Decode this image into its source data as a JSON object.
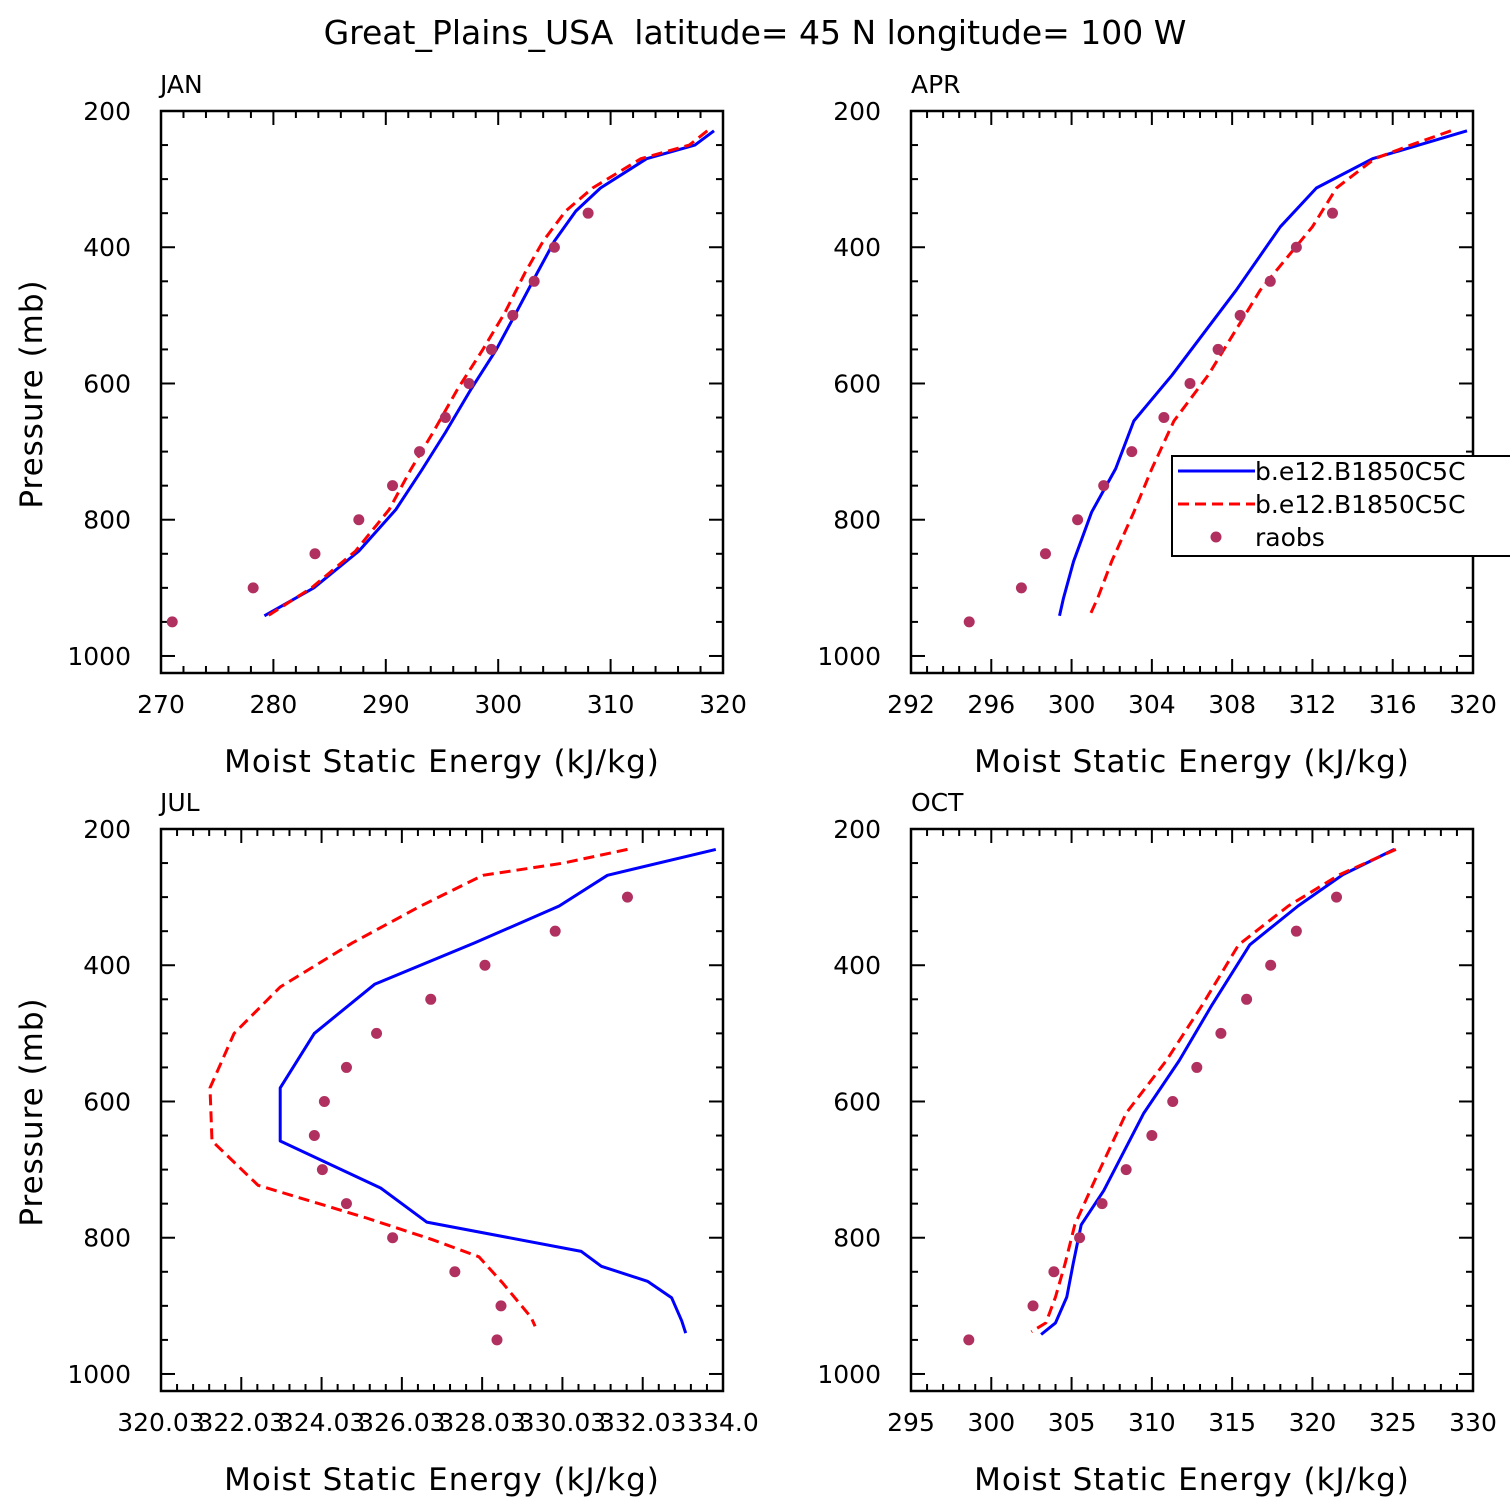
{
  "figure": {
    "title": "Great_Plains_USA  latitude= 45 N longitude= 100 W"
  },
  "colors": {
    "model_a": "#0000ff",
    "model_b": "#ff0000",
    "raobs": "#b03060"
  },
  "legend": {
    "entries": [
      {
        "label": "b.e12.B1850C5C",
        "style": "solid",
        "color": "#0000ff"
      },
      {
        "label": "b.e12.B1850C5C",
        "style": "dashed",
        "color": "#ff0000"
      },
      {
        "label": "raobs",
        "style": "marker",
        "color": "#b03060"
      }
    ]
  },
  "chart_data": [
    {
      "type": "line",
      "title": "JAN",
      "xlabel": "Moist Static Energy (kJ/kg)",
      "ylabel": "Pressure (mb)",
      "xlim": [
        270,
        320
      ],
      "ylim": [
        200,
        1025
      ],
      "xticks": [
        "270",
        "280",
        "290",
        "300",
        "310",
        "320"
      ],
      "xtick_values": [
        270,
        280,
        290,
        300,
        310,
        320
      ],
      "yticks": [
        "200",
        "400",
        "600",
        "800",
        "1000"
      ],
      "ytick_values": [
        200,
        400,
        600,
        800,
        1000
      ],
      "series": [
        {
          "name": "b.e12.B1850C5C",
          "style": "solid",
          "color": "#0000ff",
          "x": [
            319.2,
            317.5,
            313.2,
            309.1,
            306.9,
            305.0,
            303.5,
            301.6,
            299.8,
            297.6,
            295.3,
            293.2,
            290.9,
            287.6,
            283.6,
            279.2
          ],
          "y": [
            229,
            250,
            270,
            313,
            347,
            391,
            437,
            496,
            551,
            608,
            672,
            727,
            785,
            846,
            900,
            941
          ]
        },
        {
          "name": "b.e12.B1850C5C",
          "style": "dashed",
          "color": "#ff0000",
          "x": [
            318.6,
            317.0,
            312.7,
            308.4,
            306.0,
            304.0,
            302.4,
            300.6,
            298.6,
            296.4,
            294.2,
            292.2,
            290.3,
            287.3,
            283.4,
            279.5
          ],
          "y": [
            229,
            250,
            270,
            313,
            347,
            391,
            437,
            496,
            551,
            608,
            672,
            727,
            785,
            846,
            900,
            941
          ]
        },
        {
          "name": "raobs",
          "style": "marker",
          "color": "#b03060",
          "x": [
            308.0,
            305.0,
            303.2,
            301.3,
            299.4,
            297.4,
            295.3,
            293.0,
            290.6,
            287.6,
            283.7,
            278.2,
            271.0
          ],
          "y": [
            350,
            400,
            450,
            500,
            550,
            600,
            650,
            700,
            750,
            800,
            850,
            900,
            950
          ]
        }
      ]
    },
    {
      "type": "line",
      "title": "APR",
      "xlabel": "Moist Static Energy (kJ/kg)",
      "ylabel": "",
      "xlim": [
        292,
        320
      ],
      "ylim": [
        200,
        1025
      ],
      "xticks": [
        "292",
        "296",
        "300",
        "304",
        "308",
        "312",
        "316",
        "320"
      ],
      "xtick_values": [
        292,
        296,
        300,
        304,
        308,
        312,
        316,
        320
      ],
      "yticks": [
        "200",
        "400",
        "600",
        "800",
        "1000"
      ],
      "ytick_values": [
        200,
        400,
        600,
        800,
        1000
      ],
      "series": [
        {
          "name": "b.e12.B1850C5C",
          "style": "solid",
          "color": "#0000ff",
          "x": [
            319.7,
            317.3,
            315.0,
            312.2,
            310.4,
            308.2,
            305.0,
            303.1,
            302.2,
            301.0,
            300.1,
            299.6,
            299.4
          ],
          "y": [
            229,
            250,
            270,
            313,
            370,
            463,
            588,
            655,
            725,
            789,
            861,
            915,
            941
          ]
        },
        {
          "name": "b.e12.B1850C5C",
          "style": "dashed",
          "color": "#ff0000",
          "x": [
            318.9,
            316.9,
            315.1,
            313.2,
            312.0,
            309.4,
            306.8,
            305.1,
            304.0,
            303.1,
            302.0,
            301.3,
            300.9
          ],
          "y": [
            229,
            250,
            270,
            313,
            370,
            463,
            588,
            655,
            725,
            789,
            861,
            915,
            941
          ]
        },
        {
          "name": "raobs",
          "style": "marker",
          "color": "#b03060",
          "x": [
            313.0,
            311.2,
            309.9,
            308.4,
            307.3,
            305.9,
            304.6,
            303.0,
            301.6,
            300.3,
            298.7,
            297.5,
            294.9
          ],
          "y": [
            350,
            400,
            450,
            500,
            550,
            600,
            650,
            700,
            750,
            800,
            850,
            900,
            950
          ]
        }
      ]
    },
    {
      "type": "line",
      "title": "JUL",
      "xlabel": "Moist Static Energy (kJ/kg)",
      "ylabel": "Pressure (mb)",
      "xlim": [
        320.03,
        334.03
      ],
      "ylim": [
        200,
        1025
      ],
      "xticks": [
        "320.03",
        "322.03",
        "324.03",
        "326.03",
        "328.03",
        "330.03",
        "332.03",
        "334.0"
      ],
      "xtick_values": [
        320.03,
        322.03,
        324.03,
        326.03,
        328.03,
        330.03,
        332.03,
        334.03
      ],
      "yticks": [
        "200",
        "400",
        "600",
        "800",
        "1000"
      ],
      "ytick_values": [
        200,
        400,
        600,
        800,
        1000
      ],
      "series": [
        {
          "name": "b.e12.B1850C5C",
          "style": "solid",
          "color": "#0000ff",
          "x": [
            333.85,
            331.15,
            329.95,
            327.85,
            325.35,
            323.85,
            323.0,
            323.0,
            325.5,
            326.65,
            330.5,
            331.0,
            332.15,
            332.75,
            333.0,
            333.1
          ],
          "y": [
            230,
            268,
            313,
            367,
            428,
            500,
            580,
            658,
            727,
            777,
            820,
            842,
            864,
            888,
            922,
            940
          ]
        },
        {
          "name": "b.e12.B1850C5C",
          "style": "dashed",
          "color": "#ff0000",
          "x": [
            331.65,
            330.05,
            328.05,
            326.5,
            324.8,
            323.0,
            321.85,
            321.25,
            321.3,
            322.45,
            325.15,
            326.8,
            327.95,
            328.55,
            329.25,
            329.35
          ],
          "y": [
            230,
            250,
            268,
            313,
            367,
            432,
            500,
            580,
            658,
            723,
            771,
            803,
            828,
            867,
            917,
            930
          ]
        },
        {
          "name": "raobs",
          "style": "marker",
          "color": "#b03060",
          "x": [
            331.65,
            329.85,
            328.1,
            326.75,
            325.4,
            324.65,
            324.1,
            323.85,
            324.05,
            324.65,
            325.8,
            327.35,
            328.5,
            328.4
          ],
          "y": [
            300,
            350,
            400,
            450,
            500,
            550,
            600,
            650,
            700,
            750,
            800,
            850,
            900,
            950
          ]
        }
      ]
    },
    {
      "type": "line",
      "title": "OCT",
      "xlabel": "Moist Static Energy (kJ/kg)",
      "ylabel": "",
      "xlim": [
        295,
        330
      ],
      "ylim": [
        200,
        1025
      ],
      "xticks": [
        "295",
        "300",
        "305",
        "310",
        "315",
        "320",
        "325",
        "330"
      ],
      "xtick_values": [
        295,
        300,
        305,
        310,
        315,
        320,
        325,
        330
      ],
      "yticks": [
        "200",
        "400",
        "600",
        "800",
        "1000"
      ],
      "ytick_values": [
        200,
        400,
        600,
        800,
        1000
      ],
      "series": [
        {
          "name": "b.e12.B1850C5C",
          "style": "solid",
          "color": "#0000ff",
          "x": [
            325.1,
            321.9,
            319.1,
            316.1,
            313.7,
            311.7,
            309.5,
            307.0,
            305.6,
            305.1,
            304.7,
            304.0,
            303.1
          ],
          "y": [
            230,
            267,
            313,
            370,
            460,
            540,
            617,
            731,
            781,
            838,
            887,
            925,
            942
          ]
        },
        {
          "name": "b.e12.B1850C5C",
          "style": "dashed",
          "color": "#ff0000",
          "x": [
            325.2,
            321.7,
            318.5,
            315.4,
            313.1,
            310.9,
            308.4,
            306.4,
            305.2,
            304.6,
            304.0,
            303.4,
            302.5
          ],
          "y": [
            230,
            267,
            313,
            370,
            460,
            540,
            617,
            718,
            781,
            838,
            887,
            925,
            938
          ]
        },
        {
          "name": "raobs",
          "style": "marker",
          "color": "#b03060",
          "x": [
            321.5,
            319.0,
            317.4,
            315.9,
            314.3,
            312.8,
            311.3,
            310.0,
            308.4,
            306.9,
            305.5,
            303.9,
            302.6,
            298.6
          ],
          "y": [
            300,
            350,
            400,
            450,
            500,
            550,
            600,
            650,
            700,
            750,
            800,
            850,
            900,
            950
          ]
        }
      ]
    }
  ]
}
